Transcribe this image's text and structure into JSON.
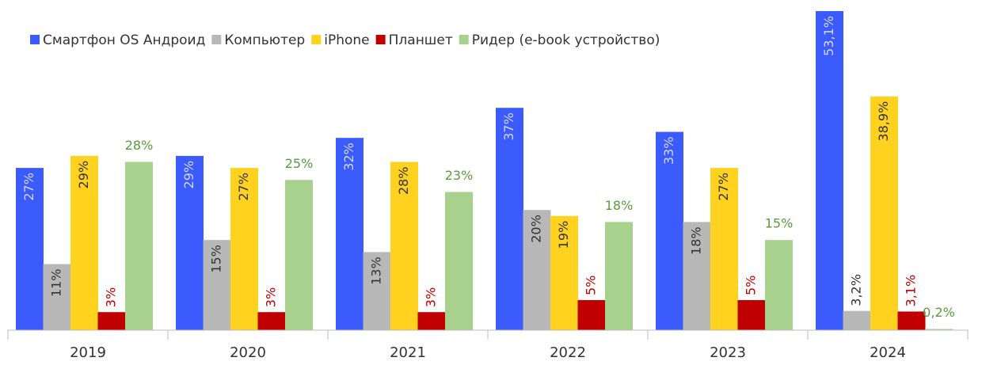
{
  "chart_data": {
    "type": "bar",
    "categories": [
      "2019",
      "2020",
      "2021",
      "2022",
      "2023",
      "2024"
    ],
    "series": [
      {
        "name": "Смартфон OS Андроид",
        "color": "#3b5bfd",
        "values": [
          27,
          29,
          32,
          37,
          33,
          53.1
        ],
        "value_labels": [
          "27%",
          "29%",
          "32%",
          "37%",
          "33%",
          "53,1%"
        ]
      },
      {
        "name": "Компьютер",
        "color": "#b8b8b8",
        "values": [
          11,
          15,
          13,
          20,
          18,
          3.2
        ],
        "value_labels": [
          "11%",
          "15%",
          "13%",
          "20%",
          "18%",
          "3,2%"
        ]
      },
      {
        "name": "iPhone",
        "color": "#ffd21f",
        "values": [
          29,
          27,
          28,
          19,
          27,
          38.9
        ],
        "value_labels": [
          "29%",
          "27%",
          "28%",
          "19%",
          "27%",
          "38,9%"
        ]
      },
      {
        "name": "Планшет",
        "color": "#c00000",
        "values": [
          3,
          3,
          3,
          5,
          5,
          3.1
        ],
        "value_labels": [
          "3%",
          "3%",
          "3%",
          "5%",
          "5%",
          "3,1%"
        ]
      },
      {
        "name": "Ридер (e-book устройство)",
        "color": "#a9d18e",
        "values": [
          28,
          25,
          23,
          18,
          15,
          0.2
        ],
        "value_labels": [
          "28%",
          "25%",
          "23%",
          "18%",
          "15%",
          "0,2%"
        ]
      }
    ],
    "ylim": [
      0,
      53.1
    ],
    "legend": "top-left"
  }
}
